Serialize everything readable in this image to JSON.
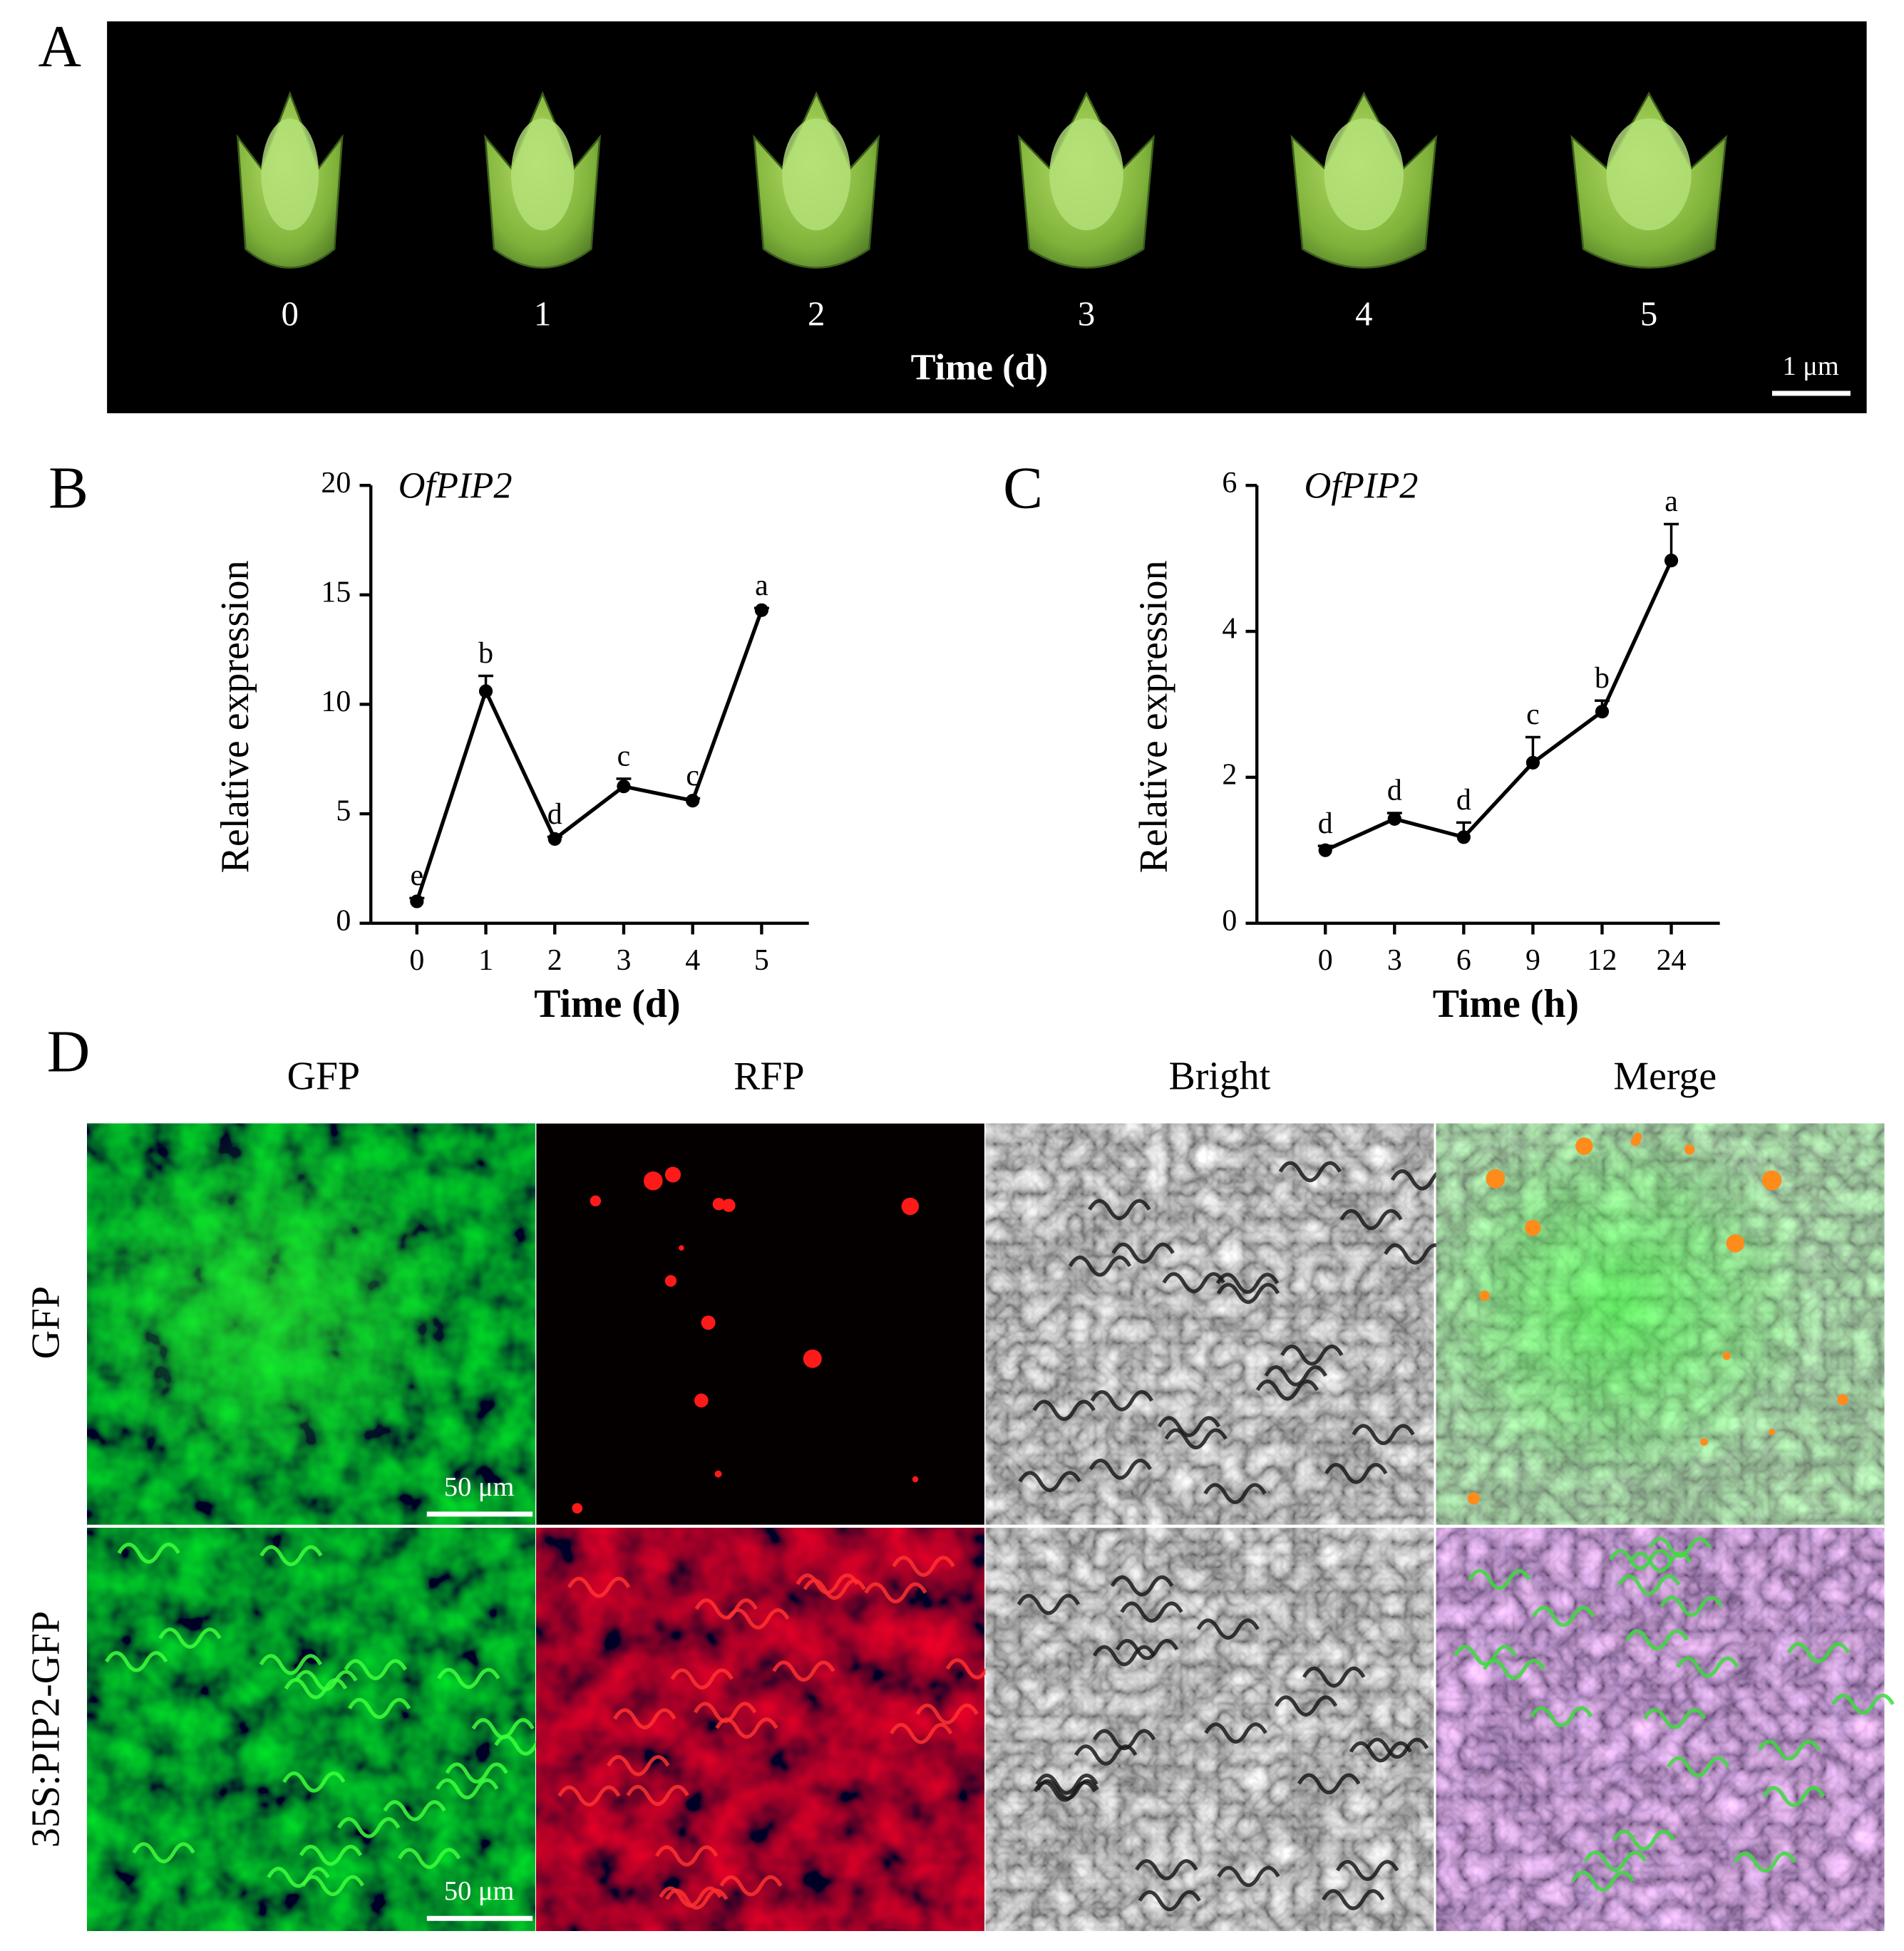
{
  "panel_a": {
    "label": "A",
    "stage_labels": [
      "0",
      "1",
      "2",
      "3",
      "4",
      "5"
    ],
    "xlabel": "Time (d)",
    "scale_bar": "1 μm"
  },
  "chart_data": [
    {
      "panel_label": "B",
      "type": "line",
      "title": "OfPIP2",
      "xlabel": "Time (d)",
      "ylabel": "Relative expression",
      "categories": [
        "0",
        "1",
        "2",
        "3",
        "4",
        "5"
      ],
      "series": [
        {
          "color": "#000000",
          "values": [
            1.0,
            10.6,
            3.85,
            6.25,
            5.6,
            14.3
          ],
          "errors": [
            0.15,
            0.7,
            0.1,
            0.35,
            0.1,
            0.1
          ],
          "labels": [
            "e",
            "b",
            "d",
            "c",
            "c",
            "a"
          ]
        }
      ],
      "ylim": [
        0,
        20
      ],
      "yticks": [
        0,
        5,
        10,
        15,
        20
      ]
    },
    {
      "panel_label": "C",
      "type": "line",
      "title": "OfPIP2",
      "xlabel": "Time (h)",
      "ylabel": "Relative expression",
      "categories": [
        "0",
        "3",
        "6",
        "9",
        "12",
        "24"
      ],
      "series": [
        {
          "color": "#000000",
          "values": [
            1.0,
            1.43,
            1.18,
            2.2,
            2.9,
            4.97
          ],
          "errors": [
            0.06,
            0.08,
            0.2,
            0.35,
            0.15,
            0.5
          ],
          "labels": [
            "d",
            "d",
            "d",
            "c",
            "b",
            "a"
          ]
        }
      ],
      "ylim": [
        0,
        6
      ],
      "yticks": [
        0,
        2,
        4,
        6
      ]
    }
  ],
  "panel_d": {
    "label": "D",
    "columns": [
      "GFP",
      "RFP",
      "Bright",
      "Merge"
    ],
    "rows": [
      "GFP",
      "35S:PIP2-GFP"
    ],
    "scale_bars": [
      "50 μm",
      "50 μm"
    ]
  }
}
